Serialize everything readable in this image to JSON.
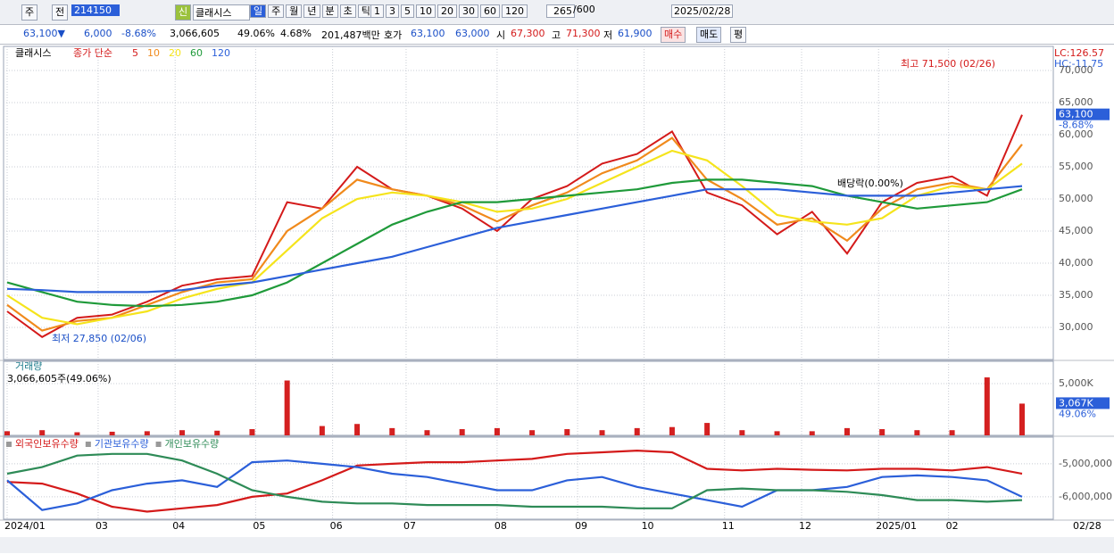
{
  "toolbar": {
    "items": [
      "주",
      "전"
    ],
    "code": "214150",
    "new": "신",
    "name": "클래시스",
    "periods": [
      "일",
      "주",
      "월",
      "년",
      "분",
      "초",
      "틱"
    ],
    "intervals": [
      "1",
      "3",
      "5",
      "10",
      "20",
      "30",
      "60",
      "120"
    ],
    "count": "265",
    "max": "/600",
    "date": "2025/02/28"
  },
  "quote": {
    "price": "63,100▼",
    "change": "6,000",
    "rate": "-8.68%",
    "volume": "3,066,605",
    "vol_rate": "49.06%",
    "turnover": "4.68%",
    "amount": "201,487백만",
    "ask_label": "호가",
    "ask": "63,100",
    "bid": "63,000",
    "open_label": "시",
    "open": "67,300",
    "high_label": "고",
    "high": "71,300",
    "low_label": "저",
    "low": "61,900",
    "buy": "매수",
    "sell": "매도",
    "avg": "평"
  },
  "chart_data": [
    {
      "type": "line",
      "title": "클래시스",
      "subtitle": "종가 단순",
      "lc": "LC:126.57",
      "hc": "HC:-11.75",
      "last_label": "63,100",
      "last_rate": "-8.68%",
      "annotations": [
        "최고 71,500 (02/26)",
        "최저 27,850 (02/06)",
        "배당락(0.00%)"
      ],
      "x": [
        0,
        1,
        2,
        3,
        4,
        5,
        6,
        7,
        8,
        9,
        10,
        11,
        12,
        13,
        14,
        15,
        16,
        17,
        18,
        19,
        20,
        21,
        22,
        23,
        24,
        25,
        26,
        27,
        28,
        29
      ],
      "xlim": [
        0,
        29
      ],
      "ylim": [
        25000,
        73750
      ],
      "grid": true,
      "xticks": [
        0,
        2.6,
        4.8,
        7.1,
        9.3,
        11.4,
        14.0,
        16.3,
        18.2,
        20.5,
        22.7,
        24.9,
        26.9
      ],
      "yticks": [
        {
          "value": 30000,
          "label": "30,000"
        },
        {
          "value": 35000,
          "label": "35,000"
        },
        {
          "value": 40000,
          "label": "40,000"
        },
        {
          "value": 45000,
          "label": "45,000"
        },
        {
          "value": 50000,
          "label": "50,000"
        },
        {
          "value": 55000,
          "label": "55,000"
        },
        {
          "value": 60000,
          "label": "60,000"
        },
        {
          "value": 65000,
          "label": "65,000"
        },
        {
          "value": 70000,
          "label": "70,000"
        }
      ],
      "series": [
        {
          "name": "5",
          "color": "#d41a1a",
          "values": [
            32500,
            28500,
            31500,
            32000,
            34000,
            36500,
            37500,
            38000,
            49500,
            48500,
            55000,
            51500,
            50500,
            48500,
            45000,
            50000,
            52000,
            55500,
            57000,
            60500,
            51000,
            49000,
            44500,
            48000,
            41500,
            49500,
            52500,
            53500,
            50500,
            63100
          ]
        },
        {
          "name": "10",
          "color": "#f08a1c",
          "values": [
            33500,
            29500,
            31000,
            31500,
            33500,
            35500,
            37000,
            37500,
            45000,
            48500,
            53000,
            51500,
            50500,
            49000,
            46500,
            49000,
            51000,
            54000,
            56000,
            59500,
            53000,
            50000,
            46000,
            47000,
            43500,
            48500,
            51500,
            52500,
            51500,
            58500
          ]
        },
        {
          "name": "20",
          "color": "#f5e41c",
          "values": [
            35000,
            31500,
            30500,
            31500,
            32500,
            34500,
            36000,
            37000,
            42000,
            47000,
            50000,
            51000,
            50500,
            49500,
            48000,
            48500,
            50000,
            52500,
            55000,
            57500,
            56000,
            52000,
            47500,
            46500,
            46000,
            47000,
            50500,
            52000,
            51500,
            55500
          ]
        },
        {
          "name": "60",
          "color": "#1f9a3a",
          "values": [
            37000,
            35500,
            34000,
            33500,
            33300,
            33500,
            34000,
            35000,
            37000,
            40000,
            43000,
            46000,
            48000,
            49500,
            49500,
            50000,
            50500,
            51000,
            51500,
            52500,
            53000,
            53000,
            52500,
            52000,
            50500,
            49500,
            48500,
            49000,
            49500,
            51500
          ]
        },
        {
          "name": "120",
          "color": "#2b5fd9",
          "values": [
            36000,
            35800,
            35500,
            35500,
            35500,
            35800,
            36500,
            37000,
            38000,
            39000,
            40000,
            41000,
            42500,
            44000,
            45500,
            46500,
            47500,
            48500,
            49500,
            50500,
            51500,
            51500,
            51500,
            51000,
            50500,
            50500,
            50500,
            51000,
            51500,
            52000
          ]
        }
      ]
    },
    {
      "type": "bar",
      "title": "거래량",
      "subtitle": "3,066,605주(49.06%)",
      "last_label": "3,067K",
      "last_rate": "49.06%",
      "x": [
        0,
        1,
        2,
        3,
        4,
        5,
        6,
        7,
        8,
        9,
        10,
        11,
        12,
        13,
        14,
        15,
        16,
        17,
        18,
        19,
        20,
        21,
        22,
        23,
        24,
        25,
        26,
        27,
        28,
        29
      ],
      "xlim": [
        0,
        29
      ],
      "ylim": [
        0,
        7155
      ],
      "grid": true,
      "xticks": [
        0,
        2.6,
        4.8,
        7.1,
        9.3,
        11.4,
        14.0,
        16.3,
        18.2,
        20.5,
        22.7,
        24.9,
        26.9
      ],
      "yticks": [
        {
          "value": 5000,
          "label": "5,000K"
        }
      ],
      "color": "#d42020",
      "values": [
        400,
        500,
        300,
        350,
        400,
        500,
        450,
        600,
        5300,
        900,
        1100,
        700,
        500,
        600,
        700,
        500,
        600,
        500,
        700,
        800,
        1200,
        500,
        400,
        400,
        700,
        600,
        500,
        500,
        5600,
        3067
      ]
    },
    {
      "type": "line",
      "last_date": "02/28",
      "x": [
        0,
        1,
        2,
        3,
        4,
        5,
        6,
        7,
        8,
        9,
        10,
        11,
        12,
        13,
        14,
        15,
        16,
        17,
        18,
        19,
        20,
        21,
        22,
        23,
        24,
        25,
        26,
        27,
        28,
        29
      ],
      "xlim": [
        0,
        29
      ],
      "ylim": [
        -6680000,
        -4190000
      ],
      "grid": true,
      "xticks": [
        {
          "value": 0,
          "label": "2024/01"
        },
        {
          "value": 2.6,
          "label": "03"
        },
        {
          "value": 4.8,
          "label": "04"
        },
        {
          "value": 7.1,
          "label": "05"
        },
        {
          "value": 9.3,
          "label": "06"
        },
        {
          "value": 11.4,
          "label": "07"
        },
        {
          "value": 14.0,
          "label": "08"
        },
        {
          "value": 16.3,
          "label": "09"
        },
        {
          "value": 18.2,
          "label": "10"
        },
        {
          "value": 20.5,
          "label": "11"
        },
        {
          "value": 22.7,
          "label": "12"
        },
        {
          "value": 24.9,
          "label": "2025/01"
        },
        {
          "value": 26.9,
          "label": "02"
        }
      ],
      "yticks": [
        {
          "value": -5000000,
          "label": "-5,000,000"
        },
        {
          "value": -6000000,
          "label": "-6,000,000"
        }
      ],
      "series": [
        {
          "name": "외국인보유수량",
          "color": "#d41a1a",
          "values": [
            -5550000,
            -5600000,
            -5900000,
            -6300000,
            -6450000,
            -6350000,
            -6250000,
            -6000000,
            -5900000,
            -5500000,
            -5050000,
            -5000000,
            -4950000,
            -4950000,
            -4900000,
            -4850000,
            -4700000,
            -4650000,
            -4600000,
            -4650000,
            -5150000,
            -5200000,
            -5150000,
            -5180000,
            -5200000,
            -5150000,
            -5150000,
            -5200000,
            -5100000,
            -5300000
          ]
        },
        {
          "name": "기관보유수량",
          "color": "#2b5fd9",
          "values": [
            -5500000,
            -6400000,
            -6200000,
            -5800000,
            -5600000,
            -5500000,
            -5700000,
            -4950000,
            -4900000,
            -5000000,
            -5100000,
            -5300000,
            -5400000,
            -5600000,
            -5800000,
            -5800000,
            -5500000,
            -5400000,
            -5700000,
            -5900000,
            -6100000,
            -6300000,
            -5800000,
            -5800000,
            -5700000,
            -5400000,
            -5350000,
            -5400000,
            -5500000,
            -6000000
          ]
        },
        {
          "name": "개인보유수량",
          "color": "#2e8b57",
          "values": [
            -5300000,
            -5100000,
            -4750000,
            -4700000,
            -4700000,
            -4900000,
            -5300000,
            -5800000,
            -6000000,
            -6150000,
            -6200000,
            -6200000,
            -6250000,
            -6250000,
            -6250000,
            -6300000,
            -6300000,
            -6300000,
            -6350000,
            -6350000,
            -5800000,
            -5750000,
            -5800000,
            -5800000,
            -5850000,
            -5950000,
            -6100000,
            -6100000,
            -6150000,
            -6100000
          ]
        }
      ]
    }
  ]
}
